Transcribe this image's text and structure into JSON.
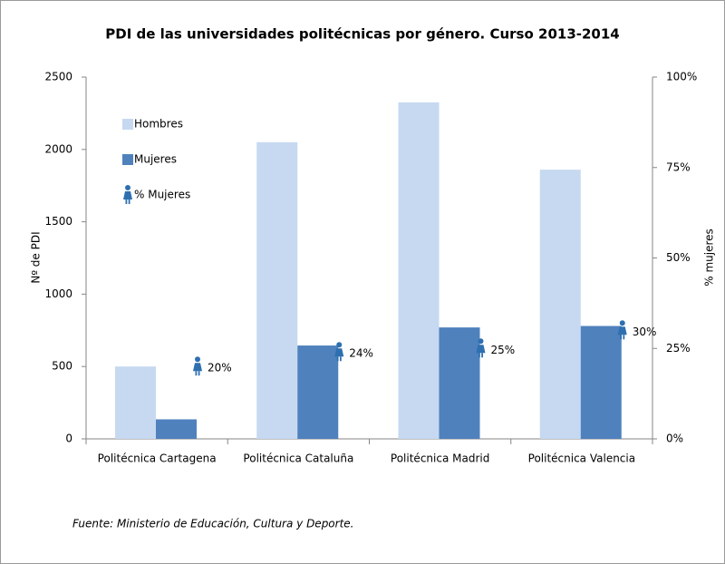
{
  "chart_data": {
    "type": "bar",
    "title": "PDI de las universidades politécnicas por género. Curso 2013-2014",
    "categories": [
      "Politécnica Cartagena",
      "Politécnica Cataluña",
      "Politécnica Madrid",
      "Politécnica Valencia"
    ],
    "series": [
      {
        "name": "Hombres",
        "color": "#c6d9f1",
        "values": [
          500,
          2050,
          2325,
          1860
        ]
      },
      {
        "name": "Mujeres",
        "color": "#4f81bd",
        "values": [
          135,
          645,
          770,
          780
        ]
      },
      {
        "name": "% Mujeres",
        "color": "#2e6fb0",
        "type": "scatter",
        "axis": "y2",
        "values": [
          20,
          24,
          25,
          30
        ],
        "value_labels": [
          "20%",
          "24%",
          "25%",
          "30%"
        ]
      }
    ],
    "ylim": [
      0,
      2500
    ],
    "yticks": [
      0,
      500,
      1000,
      1500,
      2000,
      2500
    ],
    "y2lim": [
      0,
      100
    ],
    "y2ticks": [
      {
        "value": 0,
        "label": "0%"
      },
      {
        "value": 25,
        "label": "25%"
      },
      {
        "value": 50,
        "label": "50%"
      },
      {
        "value": 75,
        "label": "75%"
      },
      {
        "value": 100,
        "label": "100%"
      }
    ],
    "ylabel": "Nº de PDI",
    "y2label": "% mujeres",
    "legend": "upper left",
    "source": "Fuente: Ministerio de Educación, Cultura y Deporte."
  }
}
